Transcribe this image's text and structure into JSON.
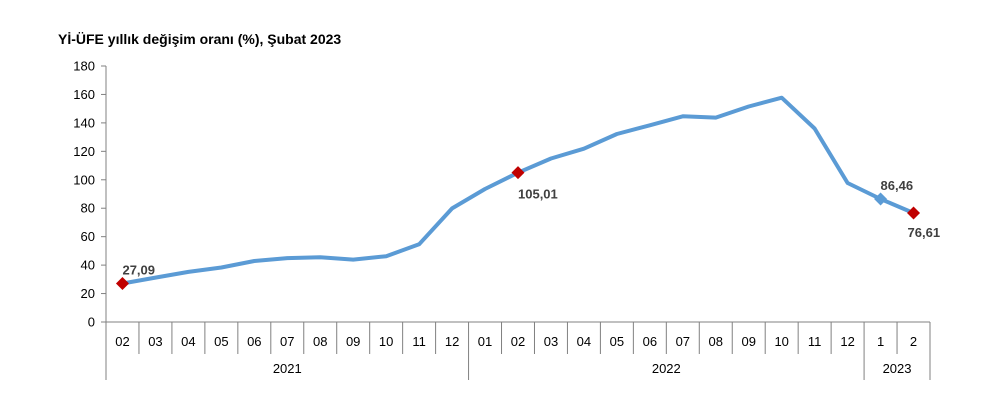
{
  "chart_data": {
    "type": "line",
    "title": "Yİ-ÜFE yıllık değişim oranı (%), Şubat 2023",
    "xlabel": "",
    "ylabel": "",
    "ylim": [
      0,
      180
    ],
    "yticks": [
      0,
      20,
      40,
      60,
      80,
      100,
      120,
      140,
      160,
      180
    ],
    "grid": false,
    "legend": "none",
    "line_color": "#5b9bd5",
    "marker_color": "#c00000",
    "categories": [
      "02",
      "03",
      "04",
      "05",
      "06",
      "07",
      "08",
      "09",
      "10",
      "11",
      "12",
      "01",
      "02",
      "03",
      "04",
      "05",
      "06",
      "07",
      "08",
      "09",
      "10",
      "11",
      "12",
      "1",
      "2"
    ],
    "year_groups": [
      {
        "label": "2021",
        "count": 11
      },
      {
        "label": "2022",
        "count": 12
      },
      {
        "label": "2023",
        "count": 2
      }
    ],
    "series": [
      {
        "values": [
          27.09,
          31.2,
          35.2,
          38.3,
          42.9,
          44.9,
          45.5,
          43.9,
          46.3,
          54.6,
          79.9,
          93.5,
          105.01,
          114.97,
          121.82,
          132.16,
          138.31,
          144.61,
          143.75,
          151.5,
          157.69,
          136.02,
          97.72,
          86.46,
          76.61
        ]
      }
    ],
    "data_labels": [
      {
        "index": 0,
        "text": "27,09",
        "marker": "diamond",
        "color": "#c00000"
      },
      {
        "index": 12,
        "text": "105,01",
        "marker": "diamond",
        "color": "#c00000"
      },
      {
        "index": 23,
        "text": "86,46",
        "marker": "diamond",
        "color": "#5b9bd5"
      },
      {
        "index": 24,
        "text": "76,61",
        "marker": "diamond",
        "color": "#c00000"
      }
    ]
  }
}
